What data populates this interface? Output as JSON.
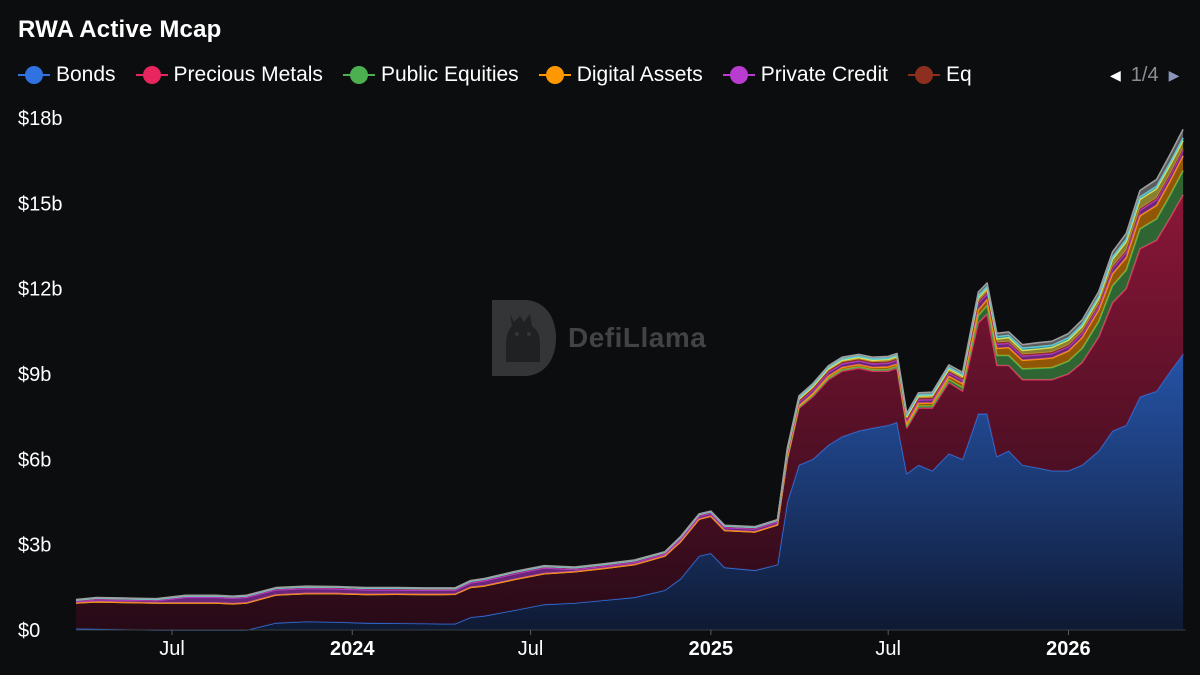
{
  "title": "RWA Active Mcap",
  "legend": {
    "items": [
      {
        "label": "Bonds",
        "color": "#2f72e0"
      },
      {
        "label": "Precious Metals",
        "color": "#e8255f"
      },
      {
        "label": "Public Equities",
        "color": "#4caf50"
      },
      {
        "label": "Digital Assets",
        "color": "#ff9800"
      },
      {
        "label": "Private Credit",
        "color": "#b83cd0"
      },
      {
        "label": "Eq",
        "color": "#8d2f1f"
      }
    ],
    "page": "1/4",
    "prev_icon": "caret-left-icon",
    "next_icon": "caret-right-icon"
  },
  "watermark": {
    "text": "DefiLlama",
    "icon": "llama-logo-icon"
  },
  "chart_data": {
    "type": "area",
    "stacked": true,
    "grid": false,
    "legend_position": "top",
    "y_ticks": [
      "$0",
      "$3b",
      "$6b",
      "$9b",
      "$12b",
      "$15b",
      "$18b"
    ],
    "y_tick_values": [
      0,
      3,
      6,
      9,
      12,
      15,
      18
    ],
    "ylim": [
      0,
      18
    ],
    "y_unit": "billions USD",
    "x_ticks": [
      {
        "label": "Jul",
        "date": "2023-07-01",
        "bold": false
      },
      {
        "label": "2024",
        "date": "2024-01-01",
        "bold": true
      },
      {
        "label": "Jul",
        "date": "2024-07-01",
        "bold": false
      },
      {
        "label": "2025",
        "date": "2025-01-01",
        "bold": true
      },
      {
        "label": "Jul",
        "date": "2025-07-01",
        "bold": false
      },
      {
        "label": "2026",
        "date": "2026-01-01",
        "bold": true
      }
    ],
    "xlim": [
      "2023-03-25",
      "2026-05-01"
    ],
    "x": [
      "2023-03-25",
      "2023-04-15",
      "2023-05-15",
      "2023-06-15",
      "2023-07-15",
      "2023-08-15",
      "2023-09-01",
      "2023-09-15",
      "2023-10-15",
      "2023-11-15",
      "2023-12-15",
      "2024-01-15",
      "2024-02-15",
      "2024-03-15",
      "2024-04-01",
      "2024-04-15",
      "2024-05-01",
      "2024-05-15",
      "2024-06-15",
      "2024-07-15",
      "2024-08-15",
      "2024-09-15",
      "2024-10-15",
      "2024-11-15",
      "2024-12-01",
      "2024-12-20",
      "2025-01-01",
      "2025-01-15",
      "2025-02-15",
      "2025-03-10",
      "2025-03-20",
      "2025-04-01",
      "2025-04-15",
      "2025-05-01",
      "2025-05-15",
      "2025-06-01",
      "2025-06-15",
      "2025-07-01",
      "2025-07-10",
      "2025-07-20",
      "2025-08-01",
      "2025-08-15",
      "2025-09-01",
      "2025-09-15",
      "2025-10-01",
      "2025-10-10",
      "2025-10-20",
      "2025-11-01",
      "2025-11-15",
      "2025-12-01",
      "2025-12-15",
      "2026-01-01",
      "2026-01-15",
      "2026-02-01",
      "2026-02-15",
      "2026-03-01",
      "2026-03-15",
      "2026-04-01",
      "2026-04-15",
      "2026-04-28"
    ],
    "series": [
      {
        "name": "Bonds",
        "color": "#2f72e0",
        "values": [
          0.05,
          0.04,
          0.02,
          0.0,
          0.0,
          0.0,
          0.0,
          0.0,
          0.25,
          0.3,
          0.28,
          0.25,
          0.24,
          0.23,
          0.22,
          0.22,
          0.45,
          0.5,
          0.7,
          0.9,
          0.95,
          1.05,
          1.15,
          1.4,
          1.8,
          2.6,
          2.7,
          2.2,
          2.1,
          2.3,
          4.5,
          5.8,
          6.0,
          6.5,
          6.8,
          7.0,
          7.1,
          7.2,
          7.3,
          5.5,
          5.8,
          5.6,
          6.2,
          6.0,
          7.6,
          7.6,
          6.1,
          6.3,
          5.8,
          5.7,
          5.6,
          5.6,
          5.8,
          6.3,
          7.0,
          7.2,
          8.2,
          8.4,
          9.1,
          9.7
        ]
      },
      {
        "name": "Precious Metals",
        "color": "#e8255f",
        "values": [
          0.9,
          0.95,
          0.95,
          0.95,
          0.95,
          0.95,
          0.92,
          0.95,
          0.98,
          0.98,
          1.0,
          1.0,
          1.02,
          1.02,
          1.03,
          1.04,
          1.05,
          1.05,
          1.08,
          1.08,
          1.1,
          1.12,
          1.15,
          1.2,
          1.3,
          1.3,
          1.3,
          1.3,
          1.35,
          1.4,
          1.5,
          2.0,
          2.2,
          2.3,
          2.3,
          2.2,
          2.0,
          1.9,
          1.9,
          1.6,
          2.0,
          2.2,
          2.5,
          2.4,
          3.2,
          3.5,
          3.2,
          3.0,
          3.0,
          3.1,
          3.2,
          3.4,
          3.6,
          4.0,
          4.5,
          4.8,
          5.2,
          5.3,
          5.4,
          5.6
        ]
      },
      {
        "name": "Public Equities",
        "color": "#4caf50",
        "values": [
          0.0,
          0.0,
          0.0,
          0.0,
          0.0,
          0.0,
          0.0,
          0.0,
          0.0,
          0.0,
          0.0,
          0.0,
          0.0,
          0.0,
          0.0,
          0.0,
          0.0,
          0.0,
          0.0,
          0.0,
          0.0,
          0.0,
          0.0,
          0.0,
          0.0,
          0.0,
          0.0,
          0.0,
          0.0,
          0.0,
          0.02,
          0.03,
          0.04,
          0.05,
          0.05,
          0.05,
          0.05,
          0.06,
          0.06,
          0.06,
          0.07,
          0.08,
          0.1,
          0.12,
          0.25,
          0.3,
          0.35,
          0.35,
          0.38,
          0.4,
          0.42,
          0.45,
          0.5,
          0.55,
          0.6,
          0.65,
          0.7,
          0.75,
          0.8,
          0.85
        ]
      },
      {
        "name": "Digital Assets",
        "color": "#ff9800",
        "values": [
          0.0,
          0.0,
          0.0,
          0.0,
          0.0,
          0.0,
          0.0,
          0.0,
          0.0,
          0.0,
          0.0,
          0.0,
          0.0,
          0.0,
          0.0,
          0.0,
          0.0,
          0.0,
          0.0,
          0.0,
          0.0,
          0.0,
          0.0,
          0.0,
          0.0,
          0.0,
          0.0,
          0.0,
          0.0,
          0.0,
          0.05,
          0.06,
          0.07,
          0.08,
          0.08,
          0.08,
          0.08,
          0.09,
          0.09,
          0.09,
          0.1,
          0.1,
          0.12,
          0.14,
          0.2,
          0.22,
          0.25,
          0.28,
          0.3,
          0.32,
          0.34,
          0.36,
          0.38,
          0.4,
          0.42,
          0.44,
          0.46,
          0.48,
          0.5,
          0.52
        ]
      },
      {
        "name": "Private Credit",
        "color": "#b83cd0",
        "values": [
          0.05,
          0.08,
          0.08,
          0.08,
          0.2,
          0.2,
          0.2,
          0.2,
          0.18,
          0.18,
          0.17,
          0.16,
          0.15,
          0.15,
          0.15,
          0.14,
          0.16,
          0.18,
          0.2,
          0.2,
          0.08,
          0.08,
          0.08,
          0.07,
          0.1,
          0.1,
          0.1,
          0.1,
          0.1,
          0.1,
          0.12,
          0.12,
          0.12,
          0.13,
          0.13,
          0.13,
          0.13,
          0.13,
          0.13,
          0.12,
          0.12,
          0.12,
          0.12,
          0.12,
          0.25,
          0.2,
          0.15,
          0.15,
          0.15,
          0.15,
          0.15,
          0.15,
          0.15,
          0.15,
          0.2,
          0.2,
          0.2,
          0.2,
          0.2,
          0.2
        ]
      },
      {
        "name": "Eq",
        "color": "#8d2f1f",
        "values": [
          0.05,
          0.05,
          0.05,
          0.05,
          0.05,
          0.05,
          0.05,
          0.05,
          0.06,
          0.06,
          0.06,
          0.06,
          0.06,
          0.06,
          0.06,
          0.06,
          0.06,
          0.06,
          0.06,
          0.06,
          0.06,
          0.06,
          0.06,
          0.06,
          0.06,
          0.06,
          0.06,
          0.06,
          0.06,
          0.06,
          0.06,
          0.06,
          0.06,
          0.06,
          0.06,
          0.06,
          0.06,
          0.06,
          0.06,
          0.06,
          0.06,
          0.06,
          0.06,
          0.06,
          0.06,
          0.06,
          0.06,
          0.06,
          0.06,
          0.06,
          0.06,
          0.06,
          0.06,
          0.06,
          0.06,
          0.06,
          0.06,
          0.06,
          0.06,
          0.06
        ]
      },
      {
        "name": "",
        "color": "#f0e04a",
        "values": [
          0.0,
          0.0,
          0.0,
          0.0,
          0.0,
          0.0,
          0.0,
          0.0,
          0.0,
          0.0,
          0.0,
          0.0,
          0.0,
          0.0,
          0.0,
          0.0,
          0.0,
          0.0,
          0.0,
          0.0,
          0.0,
          0.0,
          0.0,
          0.0,
          0.0,
          0.0,
          0.0,
          0.0,
          0.0,
          0.0,
          0.05,
          0.05,
          0.06,
          0.06,
          0.06,
          0.06,
          0.06,
          0.07,
          0.07,
          0.07,
          0.07,
          0.08,
          0.08,
          0.08,
          0.12,
          0.12,
          0.12,
          0.14,
          0.14,
          0.15,
          0.16,
          0.17,
          0.18,
          0.2,
          0.25,
          0.3,
          0.32,
          0.32,
          0.3,
          0.28
        ]
      },
      {
        "name": "",
        "color": "#4dd0e1",
        "values": [
          0.0,
          0.0,
          0.0,
          0.0,
          0.0,
          0.0,
          0.0,
          0.0,
          0.0,
          0.0,
          0.0,
          0.0,
          0.0,
          0.0,
          0.0,
          0.0,
          0.0,
          0.0,
          0.0,
          0.0,
          0.0,
          0.0,
          0.0,
          0.0,
          0.0,
          0.0,
          0.0,
          0.0,
          0.0,
          0.0,
          0.04,
          0.05,
          0.05,
          0.05,
          0.05,
          0.05,
          0.05,
          0.05,
          0.05,
          0.05,
          0.05,
          0.05,
          0.06,
          0.06,
          0.08,
          0.08,
          0.08,
          0.08,
          0.08,
          0.08,
          0.08,
          0.08,
          0.08,
          0.08,
          0.08,
          0.09,
          0.09,
          0.09,
          0.09,
          0.09
        ]
      },
      {
        "name": "",
        "color": "#9e9e9e",
        "values": [
          0.02,
          0.02,
          0.02,
          0.02,
          0.02,
          0.02,
          0.02,
          0.02,
          0.02,
          0.02,
          0.02,
          0.02,
          0.02,
          0.02,
          0.02,
          0.02,
          0.02,
          0.02,
          0.02,
          0.02,
          0.02,
          0.02,
          0.02,
          0.02,
          0.02,
          0.02,
          0.02,
          0.02,
          0.02,
          0.02,
          0.05,
          0.06,
          0.06,
          0.06,
          0.06,
          0.06,
          0.06,
          0.06,
          0.06,
          0.06,
          0.07,
          0.07,
          0.08,
          0.08,
          0.12,
          0.12,
          0.12,
          0.12,
          0.12,
          0.14,
          0.14,
          0.15,
          0.15,
          0.16,
          0.18,
          0.2,
          0.22,
          0.24,
          0.28,
          0.3
        ]
      }
    ]
  }
}
